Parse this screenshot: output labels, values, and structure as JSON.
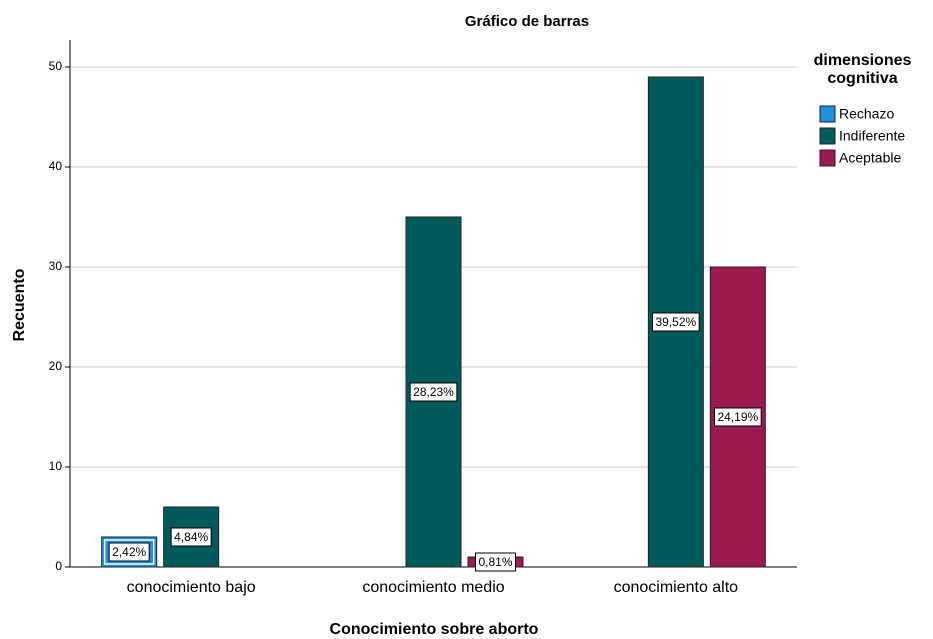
{
  "chart_data": {
    "type": "bar",
    "title": "Gráfico de barras",
    "xlabel": "Conocimiento sobre aborto",
    "ylabel": "Recuento",
    "legend_title": "dimensiones cognitiva",
    "categories": [
      "conocimiento bajo",
      "conocimiento medio",
      "conocimiento alto"
    ],
    "series": [
      {
        "name": "Rechazo",
        "color": "#1f8fe0",
        "values": [
          3,
          null,
          null
        ],
        "percent_labels": [
          "2,42%",
          null,
          null
        ]
      },
      {
        "name": "Indiferente",
        "color": "#005a5a",
        "values": [
          6,
          35,
          49
        ],
        "percent_labels": [
          "4,84%",
          "28,23%",
          "39,52%"
        ]
      },
      {
        "name": "Aceptable",
        "color": "#9b1a4f",
        "values": [
          null,
          1,
          30
        ],
        "percent_labels": [
          null,
          "0,81%",
          "24,19%"
        ]
      }
    ],
    "ylim": [
      0,
      52.7
    ],
    "yticks": [
      0,
      10,
      20,
      30,
      40,
      50
    ],
    "grid": true,
    "legend": "right"
  }
}
